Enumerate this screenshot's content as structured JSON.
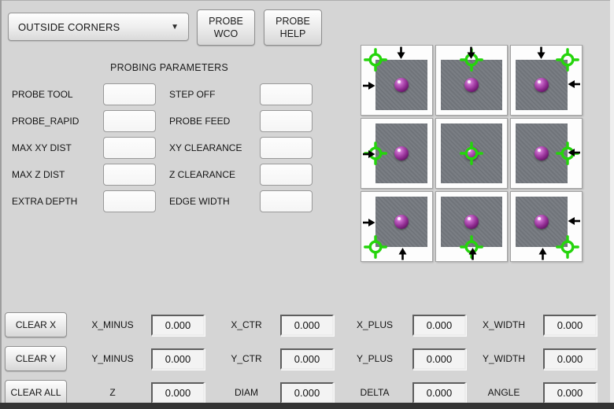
{
  "header": {
    "mode_select": {
      "value": "OUTSIDE CORNERS",
      "chevron": "▼"
    },
    "probe_wco": {
      "line1": "PROBE",
      "line2": "WCO"
    },
    "probe_help": {
      "line1": "PROBE",
      "line2": "HELP"
    }
  },
  "params": {
    "title": "PROBING PARAMETERS",
    "rows": [
      {
        "left": "PROBE TOOL",
        "left_value": "",
        "right": "STEP OFF",
        "right_value": ""
      },
      {
        "left": "PROBE_RAPID",
        "left_value": "",
        "right": "PROBE FEED",
        "right_value": ""
      },
      {
        "left": "MAX XY DIST",
        "left_value": "",
        "right": "XY CLEARANCE",
        "right_value": ""
      },
      {
        "left": "MAX Z DIST",
        "left_value": "",
        "right": "Z CLEARANCE",
        "right_value": ""
      },
      {
        "left": "EXTRA DEPTH",
        "left_value": "",
        "right": "EDGE WIDTH",
        "right_value": ""
      }
    ]
  },
  "grid": {
    "cells": [
      {
        "id": "top-left",
        "probe_sides": [
          "top",
          "left"
        ]
      },
      {
        "id": "top-center",
        "probe_sides": [
          "top"
        ]
      },
      {
        "id": "top-right",
        "probe_sides": [
          "top",
          "right"
        ]
      },
      {
        "id": "middle-left",
        "probe_sides": [
          "left"
        ]
      },
      {
        "id": "center",
        "probe_sides": []
      },
      {
        "id": "middle-right",
        "probe_sides": [
          "right"
        ]
      },
      {
        "id": "bottom-left",
        "probe_sides": [
          "bottom",
          "left"
        ]
      },
      {
        "id": "bottom-center",
        "probe_sides": [
          "bottom"
        ]
      },
      {
        "id": "bottom-right",
        "probe_sides": [
          "bottom",
          "right"
        ]
      }
    ]
  },
  "results": {
    "rows": [
      {
        "button": "CLEAR X",
        "fields": [
          {
            "label": "X_MINUS",
            "value": "0.000"
          },
          {
            "label": "X_CTR",
            "value": "0.000"
          },
          {
            "label": "X_PLUS",
            "value": "0.000"
          },
          {
            "label": "X_WIDTH",
            "value": "0.000"
          }
        ]
      },
      {
        "button": "CLEAR Y",
        "fields": [
          {
            "label": "Y_MINUS",
            "value": "0.000"
          },
          {
            "label": "Y_CTR",
            "value": "0.000"
          },
          {
            "label": "Y_PLUS",
            "value": "0.000"
          },
          {
            "label": "Y_WIDTH",
            "value": "0.000"
          }
        ]
      },
      {
        "button": "CLEAR ALL",
        "fields": [
          {
            "label": "Z",
            "value": "0.000"
          },
          {
            "label": "DIAM",
            "value": "0.000"
          },
          {
            "label": "DELTA",
            "value": "0.000"
          },
          {
            "label": "ANGLE",
            "value": "0.000"
          }
        ]
      }
    ]
  },
  "colors": {
    "crosshair_green": "#25d40c",
    "arrow_black": "#000000",
    "workpiece_gray": "#75797f",
    "sphere_purple": "#8e2b90",
    "background": "#d5d5d5"
  }
}
